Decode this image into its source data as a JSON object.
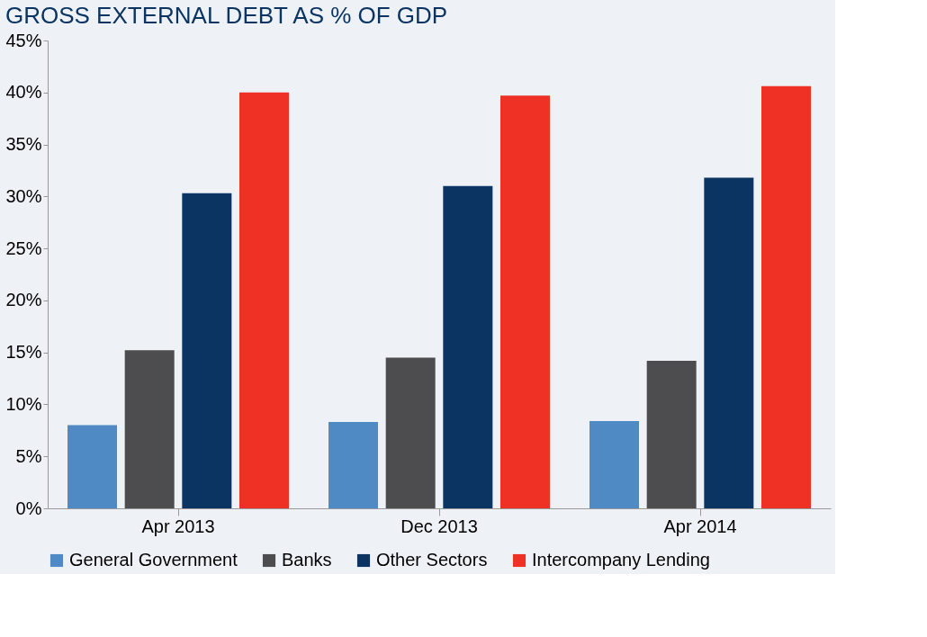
{
  "chart_data": {
    "type": "bar",
    "title": "GROSS EXTERNAL DEBT AS % OF GDP",
    "categories": [
      "Apr 2013",
      "Dec 2013",
      "Apr 2014"
    ],
    "series": [
      {
        "name": "General Government",
        "color": "#4f8ac4",
        "values": [
          8.0,
          8.3,
          8.4
        ]
      },
      {
        "name": "Banks",
        "color": "#4d4d4f",
        "values": [
          15.2,
          14.5,
          14.2
        ]
      },
      {
        "name": "Other Sectors",
        "color": "#0b3462",
        "values": [
          30.3,
          31.0,
          31.8
        ]
      },
      {
        "name": "Intercompany Lending",
        "color": "#ee3124",
        "values": [
          40.0,
          39.7,
          40.6
        ]
      }
    ],
    "ylim": [
      0,
      45
    ],
    "yticks": [
      {
        "value": 0,
        "label": "0%"
      },
      {
        "value": 5,
        "label": "5%"
      },
      {
        "value": 10,
        "label": "10%"
      },
      {
        "value": 15,
        "label": "15%"
      },
      {
        "value": 20,
        "label": "20%"
      },
      {
        "value": 25,
        "label": "25%"
      },
      {
        "value": 30,
        "label": "30%"
      },
      {
        "value": 35,
        "label": "35%"
      },
      {
        "value": 40,
        "label": "40%"
      },
      {
        "value": 45,
        "label": "45%"
      }
    ],
    "grid": false,
    "legend": "bottom"
  }
}
